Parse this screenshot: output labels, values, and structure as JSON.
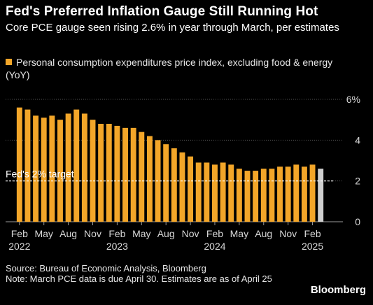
{
  "header": {
    "title": "Fed's Preferred Inflation Gauge Still Running Hot",
    "subtitle": "Core PCE gauge seen rising 2.6% in year through March, per estimates"
  },
  "legend": {
    "label": "Personal consumption expenditures price index, excluding food & energy (YoY)",
    "color": "#f3a629"
  },
  "chart_data": {
    "type": "bar",
    "categories": [
      "Feb 2022",
      "Mar 2022",
      "Apr 2022",
      "May 2022",
      "Jun 2022",
      "Jul 2022",
      "Aug 2022",
      "Sep 2022",
      "Oct 2022",
      "Nov 2022",
      "Dec 2022",
      "Jan 2023",
      "Feb 2023",
      "Mar 2023",
      "Apr 2023",
      "May 2023",
      "Jun 2023",
      "Jul 2023",
      "Aug 2023",
      "Sep 2023",
      "Oct 2023",
      "Nov 2023",
      "Dec 2023",
      "Jan 2024",
      "Feb 2024",
      "Mar 2024",
      "Apr 2024",
      "May 2024",
      "Jun 2024",
      "Jul 2024",
      "Aug 2024",
      "Sep 2024",
      "Oct 2024",
      "Nov 2024",
      "Dec 2024",
      "Jan 2025",
      "Feb 2025",
      "Mar 2025"
    ],
    "series": [
      {
        "values": [
          5.6,
          5.5,
          5.2,
          5.1,
          5.2,
          5.0,
          5.3,
          5.5,
          5.3,
          5.0,
          4.8,
          4.8,
          4.7,
          4.6,
          4.6,
          4.4,
          4.2,
          4.0,
          3.8,
          3.6,
          3.4,
          3.2,
          2.9,
          2.9,
          2.8,
          2.9,
          2.8,
          2.6,
          2.5,
          2.5,
          2.6,
          2.6,
          2.7,
          2.7,
          2.8,
          2.7,
          2.8,
          2.6
        ],
        "color": "#f3a629"
      }
    ],
    "estimate": {
      "index": 37,
      "color": "#cfcfcf"
    },
    "x_tick_labels": [
      {
        "index": 0,
        "label": "Feb",
        "year": "2022"
      },
      {
        "index": 3,
        "label": "May",
        "year": ""
      },
      {
        "index": 6,
        "label": "Aug",
        "year": ""
      },
      {
        "index": 9,
        "label": "Nov",
        "year": ""
      },
      {
        "index": 12,
        "label": "Feb",
        "year": "2023"
      },
      {
        "index": 15,
        "label": "May",
        "year": ""
      },
      {
        "index": 18,
        "label": "Aug",
        "year": ""
      },
      {
        "index": 21,
        "label": "Nov",
        "year": ""
      },
      {
        "index": 24,
        "label": "Feb",
        "year": "2024"
      },
      {
        "index": 27,
        "label": "May",
        "year": ""
      },
      {
        "index": 30,
        "label": "Aug",
        "year": ""
      },
      {
        "index": 33,
        "label": "Nov",
        "year": ""
      },
      {
        "index": 36,
        "label": "Feb",
        "year": "2025"
      }
    ],
    "y_ticks": [
      0,
      2,
      4,
      6
    ],
    "y_tick_labels": [
      "0",
      "2",
      "4",
      "6%"
    ],
    "ylim": [
      0,
      6
    ],
    "target": {
      "value": 2,
      "label": "Fed's 2% target"
    },
    "grid": "horizontal dotted",
    "xlabel": "",
    "ylabel": ""
  },
  "footer": {
    "source": "Source: Bureau of Economic Analysis, Bloomberg",
    "note": "Note: March PCE data is due April 30. Estimates are as of April 25"
  },
  "brand": "Bloomberg"
}
